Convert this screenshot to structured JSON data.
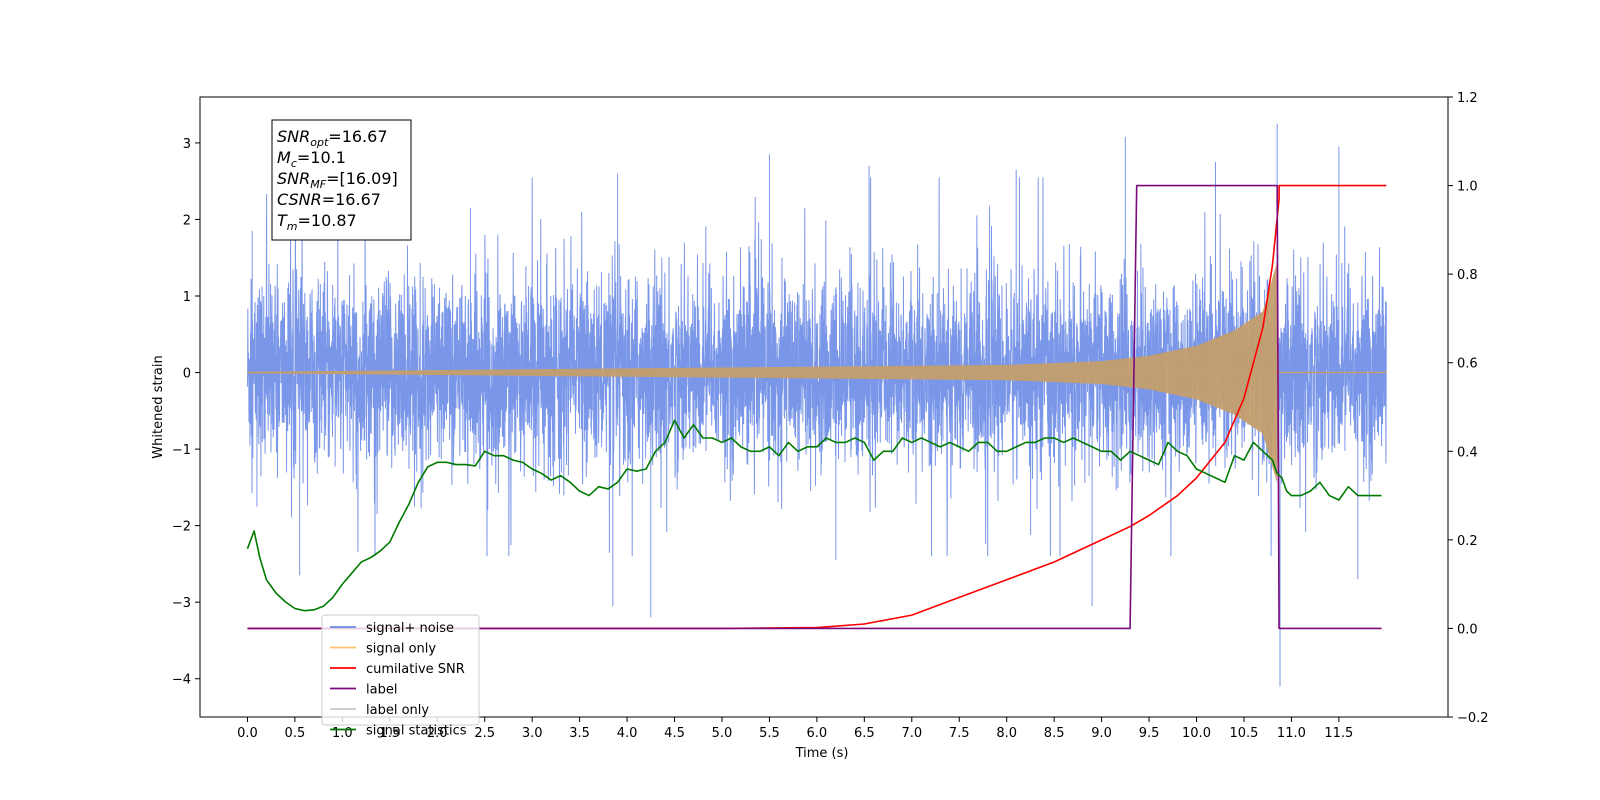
{
  "chart_data": {
    "type": "line",
    "xlabel": "Time (s)",
    "ylabel_left": "Whitened strain",
    "xlim": [
      -0.5,
      12.65
    ],
    "ylim_left": [
      -4.5,
      3.6
    ],
    "ylim_right": [
      -0.2,
      1.2
    ],
    "x_ticks": [
      "0.0",
      "0.5",
      "1.0",
      "1.5",
      "2.0",
      "2.5",
      "3.0",
      "3.5",
      "4.0",
      "4.5",
      "5.0",
      "5.5",
      "6.0",
      "6.5",
      "7.0",
      "7.5",
      "8.0",
      "8.5",
      "9.0",
      "9.5",
      "10.0",
      "10.5",
      "11.0",
      "11.5"
    ],
    "y_ticks_left": [
      "3",
      "2",
      "1",
      "0",
      "−1",
      "−2",
      "−3",
      "−4"
    ],
    "y_ticks_right": [
      "1.2",
      "1.0",
      "0.8",
      "0.6",
      "0.4",
      "0.2",
      "0.0",
      "−0.2"
    ],
    "annotation": {
      "lines": [
        {
          "main": "SNR",
          "sub": "opt",
          "rest": "=16.67"
        },
        {
          "main": "M",
          "sub": "c",
          "rest": "=10.1"
        },
        {
          "main": "SNR",
          "sub": "MF",
          "rest": "=[16.09]"
        },
        {
          "main": "CSNR",
          "sub": "",
          "rest": "=16.67"
        },
        {
          "main": "T",
          "sub": "m",
          "rest": "=10.87"
        }
      ]
    },
    "legend": {
      "placement": "lower-left",
      "entries": [
        {
          "label": "signal+ noise",
          "color": "#6a8be6"
        },
        {
          "label": "signal only",
          "color": "#ffc36b"
        },
        {
          "label": "cumilative SNR",
          "color": "#ff0000"
        },
        {
          "label": "label",
          "color": "#7b0a7b"
        },
        {
          "label": "label only",
          "color": "#c8c8c8"
        },
        {
          "label": "signal statistics",
          "color": "#007a00"
        }
      ]
    },
    "series": [
      {
        "name": "signal+ noise",
        "axis": "left",
        "color": "#6a8be6",
        "kind": "noise",
        "t_range": [
          0.0,
          12.0
        ],
        "base_amplitude": 0.9,
        "spikes": [
          {
            "t": 0.05,
            "y": 1.85
          },
          {
            "t": 0.1,
            "y": -1.75
          },
          {
            "t": 0.55,
            "y": -2.65
          },
          {
            "t": 2.35,
            "y": 2.15
          },
          {
            "t": 3.9,
            "y": 2.6
          },
          {
            "t": 3.85,
            "y": -3.05
          },
          {
            "t": 4.25,
            "y": -3.2
          },
          {
            "t": 5.5,
            "y": 2.85
          },
          {
            "t": 6.2,
            "y": -2.45
          },
          {
            "t": 6.55,
            "y": 2.7
          },
          {
            "t": 8.1,
            "y": 2.65
          },
          {
            "t": 8.9,
            "y": -3.05
          },
          {
            "t": 9.25,
            "y": 3.08
          },
          {
            "t": 10.2,
            "y": 2.75
          },
          {
            "t": 10.85,
            "y": 3.25
          },
          {
            "t": 10.88,
            "y": -4.1
          },
          {
            "t": 11.5,
            "y": 2.95
          },
          {
            "t": 11.7,
            "y": -2.7
          }
        ]
      },
      {
        "name": "signal only",
        "axis": "left",
        "color": "#c49e6e",
        "kind": "chirp",
        "t_range": [
          0.0,
          12.0
        ],
        "merger_time": 10.87,
        "amp_at": [
          [
            0.0,
            0.01
          ],
          [
            8.0,
            0.1
          ],
          [
            9.0,
            0.15
          ],
          [
            9.5,
            0.22
          ],
          [
            10.0,
            0.35
          ],
          [
            10.4,
            0.55
          ],
          [
            10.7,
            0.8
          ],
          [
            10.85,
            1.45
          ],
          [
            10.87,
            0.0
          ]
        ]
      },
      {
        "name": "cumilative SNR",
        "axis": "right",
        "color": "#ff0000",
        "kind": "line",
        "x": [
          0.0,
          5.0,
          6.0,
          6.5,
          7.0,
          7.5,
          8.0,
          8.5,
          9.0,
          9.3,
          9.5,
          9.8,
          10.0,
          10.3,
          10.5,
          10.7,
          10.8,
          10.87,
          10.87,
          12.0
        ],
        "y": [
          0.0,
          0.0,
          0.002,
          0.01,
          0.03,
          0.07,
          0.11,
          0.15,
          0.2,
          0.23,
          0.255,
          0.3,
          0.34,
          0.42,
          0.52,
          0.68,
          0.82,
          0.97,
          1.0,
          1.0
        ]
      },
      {
        "name": "label",
        "axis": "right",
        "color": "#7b0a7b",
        "kind": "line",
        "x": [
          0.0,
          9.3,
          9.37,
          10.85,
          10.87,
          11.95
        ],
        "y": [
          0.0,
          0.0,
          1.0,
          1.0,
          0.0,
          0.0
        ]
      },
      {
        "name": "signal statistics",
        "axis": "right",
        "color": "#007a00",
        "kind": "line",
        "x": [
          0.0,
          0.07,
          0.13,
          0.2,
          0.3,
          0.4,
          0.5,
          0.6,
          0.7,
          0.8,
          0.9,
          1.0,
          1.1,
          1.2,
          1.3,
          1.4,
          1.5,
          1.6,
          1.7,
          1.8,
          1.9,
          2.0,
          2.1,
          2.2,
          2.3,
          2.4,
          2.5,
          2.6,
          2.7,
          2.8,
          2.9,
          3.0,
          3.1,
          3.2,
          3.3,
          3.4,
          3.5,
          3.6,
          3.7,
          3.8,
          3.9,
          4.0,
          4.1,
          4.2,
          4.3,
          4.4,
          4.5,
          4.6,
          4.7,
          4.8,
          4.9,
          5.0,
          5.1,
          5.2,
          5.3,
          5.4,
          5.5,
          5.6,
          5.7,
          5.8,
          5.9,
          6.0,
          6.1,
          6.2,
          6.3,
          6.4,
          6.5,
          6.6,
          6.7,
          6.8,
          6.9,
          7.0,
          7.1,
          7.2,
          7.3,
          7.4,
          7.5,
          7.6,
          7.7,
          7.8,
          7.9,
          8.0,
          8.1,
          8.2,
          8.3,
          8.4,
          8.5,
          8.6,
          8.7,
          8.8,
          8.9,
          9.0,
          9.1,
          9.2,
          9.3,
          9.4,
          9.5,
          9.6,
          9.7,
          9.8,
          9.9,
          10.0,
          10.1,
          10.2,
          10.3,
          10.4,
          10.5,
          10.6,
          10.7,
          10.8,
          10.85,
          10.9,
          10.95,
          11.0,
          11.1,
          11.2,
          11.3,
          11.4,
          11.5,
          11.6,
          11.7,
          11.8,
          11.95
        ],
        "y": [
          0.18,
          0.22,
          0.16,
          0.11,
          0.08,
          0.06,
          0.045,
          0.04,
          0.042,
          0.05,
          0.07,
          0.1,
          0.125,
          0.15,
          0.16,
          0.175,
          0.195,
          0.24,
          0.28,
          0.33,
          0.365,
          0.375,
          0.375,
          0.37,
          0.37,
          0.367,
          0.4,
          0.39,
          0.39,
          0.38,
          0.375,
          0.36,
          0.35,
          0.335,
          0.345,
          0.33,
          0.31,
          0.3,
          0.32,
          0.315,
          0.33,
          0.36,
          0.355,
          0.36,
          0.4,
          0.42,
          0.47,
          0.43,
          0.46,
          0.43,
          0.43,
          0.42,
          0.43,
          0.41,
          0.4,
          0.4,
          0.41,
          0.39,
          0.42,
          0.4,
          0.41,
          0.41,
          0.43,
          0.42,
          0.42,
          0.43,
          0.42,
          0.38,
          0.4,
          0.4,
          0.43,
          0.42,
          0.43,
          0.42,
          0.41,
          0.42,
          0.41,
          0.4,
          0.42,
          0.42,
          0.4,
          0.4,
          0.41,
          0.42,
          0.42,
          0.43,
          0.43,
          0.42,
          0.43,
          0.42,
          0.41,
          0.4,
          0.4,
          0.38,
          0.4,
          0.39,
          0.38,
          0.37,
          0.42,
          0.4,
          0.39,
          0.36,
          0.35,
          0.34,
          0.33,
          0.39,
          0.38,
          0.42,
          0.4,
          0.38,
          0.35,
          0.34,
          0.31,
          0.3,
          0.3,
          0.31,
          0.33,
          0.3,
          0.29,
          0.32,
          0.3,
          0.3,
          0.3
        ]
      }
    ]
  }
}
